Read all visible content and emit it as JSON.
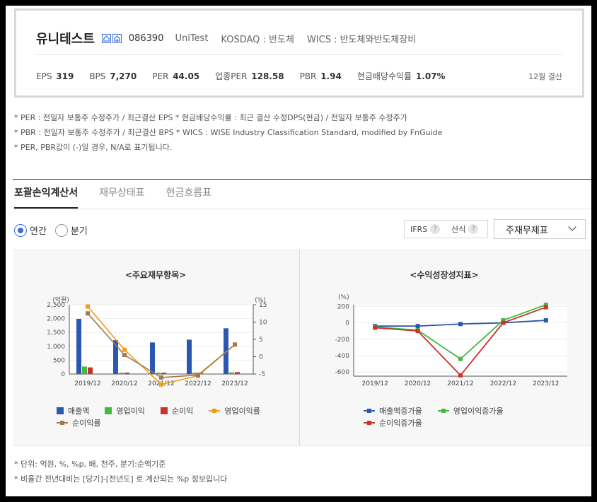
{
  "company": {
    "name": "유니테스트",
    "code": "086390",
    "english_name": "UniTest",
    "market": "KOSDAQ : 반도체",
    "wics": "WICS : 반도체와반도체장비",
    "icons": [
      "home-icon",
      "home-icon-alt"
    ]
  },
  "metrics": {
    "eps_label": "EPS",
    "eps": "319",
    "bps_label": "BPS",
    "bps": "7,270",
    "per_label": "PER",
    "per": "44.05",
    "ind_per_label": "업종PER",
    "ind_per": "128.58",
    "pbr_label": "PBR",
    "pbr": "1.94",
    "div_label": "현금배당수익률",
    "div": "1.07%",
    "settlement": "12월 결산"
  },
  "notes": [
    "* PER : 전일자 보통주 수정주가 / 최근결산 EPS * 현금배당수익률 : 최근 결산 수정DPS(현금) / 전일자 보통주 수정주가",
    "* PBR : 전일자 보통주 수정주가 / 최근결산 BPS * WICS : WISE Industry Classification Standard, modified by FnGuide",
    "* PER, PBR값이 (-)일 경우, N/A로 표기됩니다."
  ],
  "tabs": [
    {
      "label": "포괄손익계산서",
      "active": true
    },
    {
      "label": "재무상태표",
      "active": false
    },
    {
      "label": "현금흐름표",
      "active": false
    }
  ],
  "period": {
    "annual": "연간",
    "quarter": "분기",
    "selected": "annual"
  },
  "options": {
    "ifrs": "IFRS",
    "calc": "산식",
    "help_glyph": "?"
  },
  "statement_select": {
    "value": "주재무제표"
  },
  "colors": {
    "sales": "#2a57b0",
    "op": "#45b843",
    "net": "#c8342a",
    "op_margin": "#f49a1a",
    "net_margin": "#a37a52",
    "sales_g": "#2a57b0",
    "op_g": "#45b843",
    "net_g": "#c8342a"
  },
  "chart_data": [
    {
      "type": "bar",
      "title": "<주요재무항목>",
      "ylabel": "(억원)",
      "y2label": "(%)",
      "categories": [
        "2019/12",
        "2020/12",
        "2021/12",
        "2022/12",
        "2023/12"
      ],
      "ylim": [
        0,
        2500
      ],
      "yticks": [
        "0",
        "500",
        "1,000",
        "1,500",
        "2,000",
        "2,500"
      ],
      "y2lim": [
        -5,
        15
      ],
      "y2ticks": [
        "-5",
        "0",
        "5",
        "10",
        "15"
      ],
      "series": [
        {
          "name": "매출액",
          "kind": "bar",
          "axis": "left",
          "values": [
            1990,
            1220,
            1140,
            1240,
            1650
          ]
        },
        {
          "name": "영업이익",
          "kind": "bar",
          "axis": "left",
          "values": [
            270,
            20,
            -60,
            -30,
            60
          ]
        },
        {
          "name": "순이익",
          "kind": "bar",
          "axis": "left",
          "values": [
            240,
            30,
            -80,
            -20,
            70
          ]
        },
        {
          "name": "영업이익률",
          "kind": "line",
          "axis": "right",
          "values": [
            14.5,
            2,
            -8,
            -5.5,
            3.5
          ]
        },
        {
          "name": "순이익률",
          "kind": "line",
          "axis": "right",
          "values": [
            12.5,
            0.5,
            -6,
            -5.3,
            3.5
          ]
        }
      ]
    },
    {
      "type": "line",
      "title": "<수익성장성지표>",
      "ylabel": "(%)",
      "categories": [
        "2019/12",
        "2020/12",
        "2021/12",
        "2022/12",
        "2023/12"
      ],
      "ylim": [
        -650,
        220
      ],
      "yticks": [
        "-600",
        "-400",
        "-200",
        "0",
        "200"
      ],
      "series": [
        {
          "name": "매출액증가율",
          "values": [
            -40,
            -40,
            -15,
            0,
            30
          ]
        },
        {
          "name": "영업이익증가율",
          "values": [
            -50,
            -90,
            -440,
            30,
            220
          ]
        },
        {
          "name": "순이익증가율",
          "values": [
            -60,
            -100,
            -640,
            0,
            190
          ]
        }
      ]
    }
  ],
  "footnotes": [
    "* 단위: 억원, %, %p, 배, 천주, 분기:순액기준",
    "* 비율간 전년대비는 [당기]-[전년도] 로 계산되는 %p 정보입니다"
  ]
}
